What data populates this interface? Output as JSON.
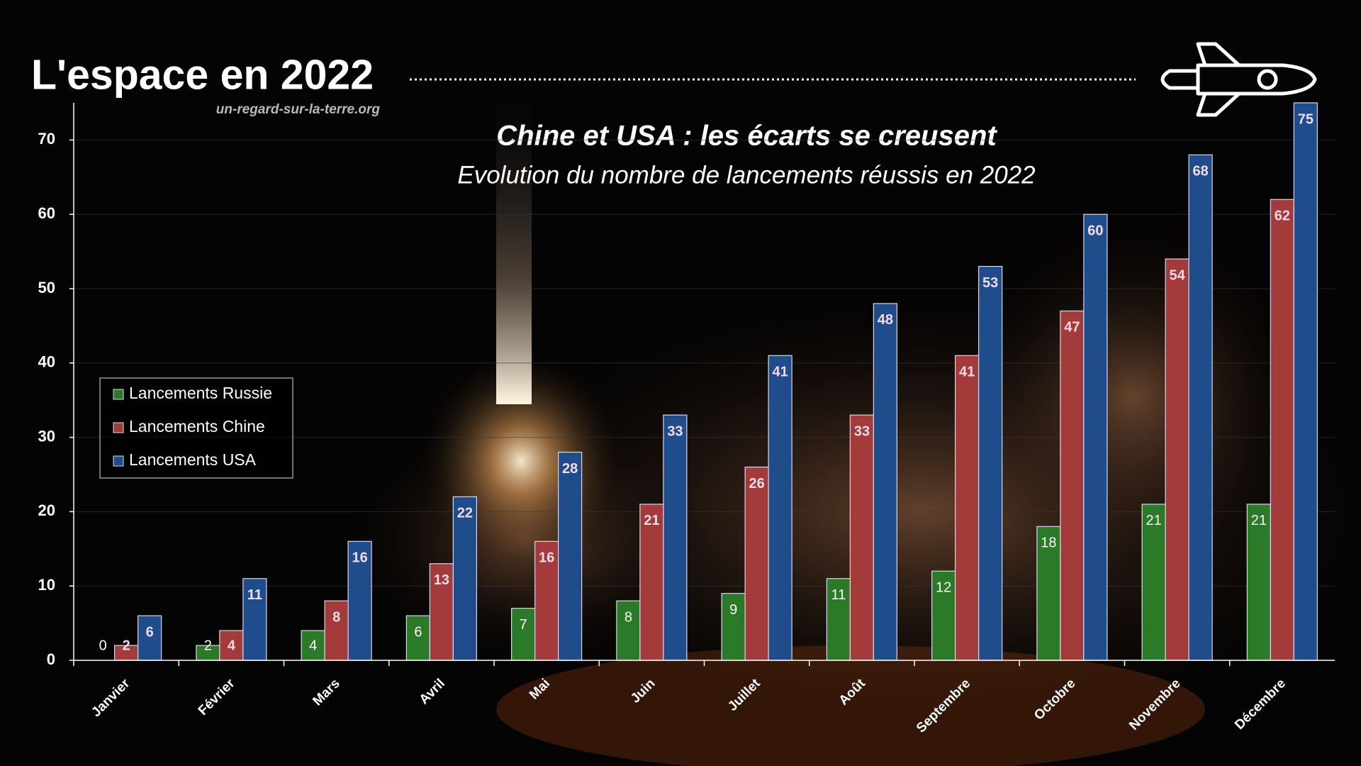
{
  "header": {
    "title": "L'espace en 2022",
    "site": "un-regard-sur-la-terre.org"
  },
  "chart_data": {
    "type": "bar",
    "title": "Chine et USA : les écarts se creusent",
    "subtitle": "Evolution du nombre de lancements réussis en 2022",
    "categories": [
      "Janvier",
      "Février",
      "Mars",
      "Avril",
      "Mai",
      "Juin",
      "Juillet",
      "Août",
      "Septembre",
      "Octobre",
      "Novembre",
      "Décembre"
    ],
    "series": [
      {
        "name": "Lancements Russie",
        "color": "#2b7a27",
        "values": [
          0,
          2,
          4,
          6,
          7,
          8,
          9,
          11,
          12,
          18,
          21,
          21
        ]
      },
      {
        "name": "Lancements Chine",
        "color": "#a33b3b",
        "values": [
          2,
          4,
          8,
          13,
          16,
          21,
          26,
          33,
          41,
          47,
          54,
          62
        ]
      },
      {
        "name": "Lancements USA",
        "color": "#1f4c8a",
        "values": [
          6,
          11,
          16,
          22,
          28,
          33,
          41,
          48,
          53,
          60,
          68,
          75
        ]
      }
    ],
    "ylim": [
      0,
      75
    ],
    "yticks": [
      0,
      10,
      20,
      30,
      40,
      50,
      60,
      70
    ],
    "grid": true
  }
}
